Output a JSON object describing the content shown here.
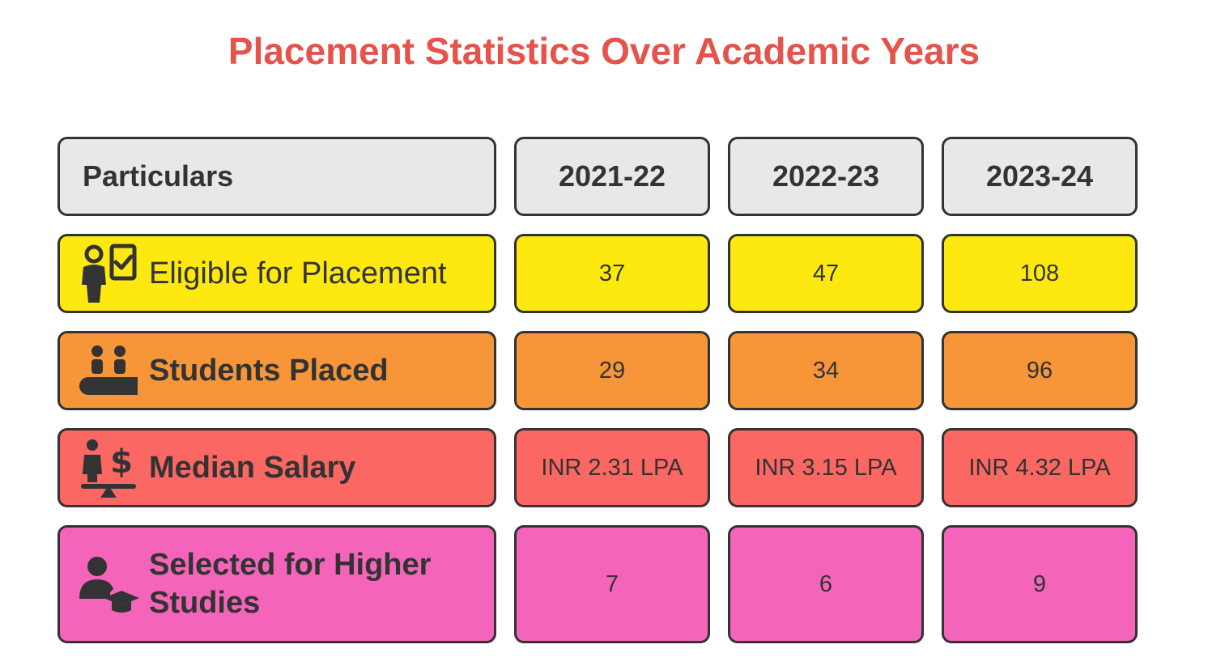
{
  "chart_data": {
    "type": "table",
    "title": "Placement Statistics Over Academic Years",
    "header": [
      "Particulars",
      "2021-22",
      "2022-23",
      "2023-24"
    ],
    "rows": [
      {
        "label": "Eligible for Placement",
        "values": [
          "37",
          "47",
          "108"
        ],
        "color": "#fde910",
        "icon": "person-checklist-icon"
      },
      {
        "label": "Students Placed",
        "values": [
          "29",
          "34",
          "96"
        ],
        "color": "#f79638",
        "icon": "people-at-table-icon"
      },
      {
        "label": "Median Salary",
        "values": [
          "INR 2.31 LPA",
          "INR 3.15 LPA",
          "INR 4.32 LPA"
        ],
        "color": "#fb6763",
        "icon": "person-dollar-balance-icon"
      },
      {
        "label": "Selected for Higher Studies",
        "values": [
          "7",
          "6",
          "9"
        ],
        "color": "#f464bb",
        "icon": "graduate-cap-icon"
      }
    ]
  },
  "colors": {
    "title": "#e5534b",
    "header_bg": "#e8e8e8",
    "border": "#333333"
  }
}
